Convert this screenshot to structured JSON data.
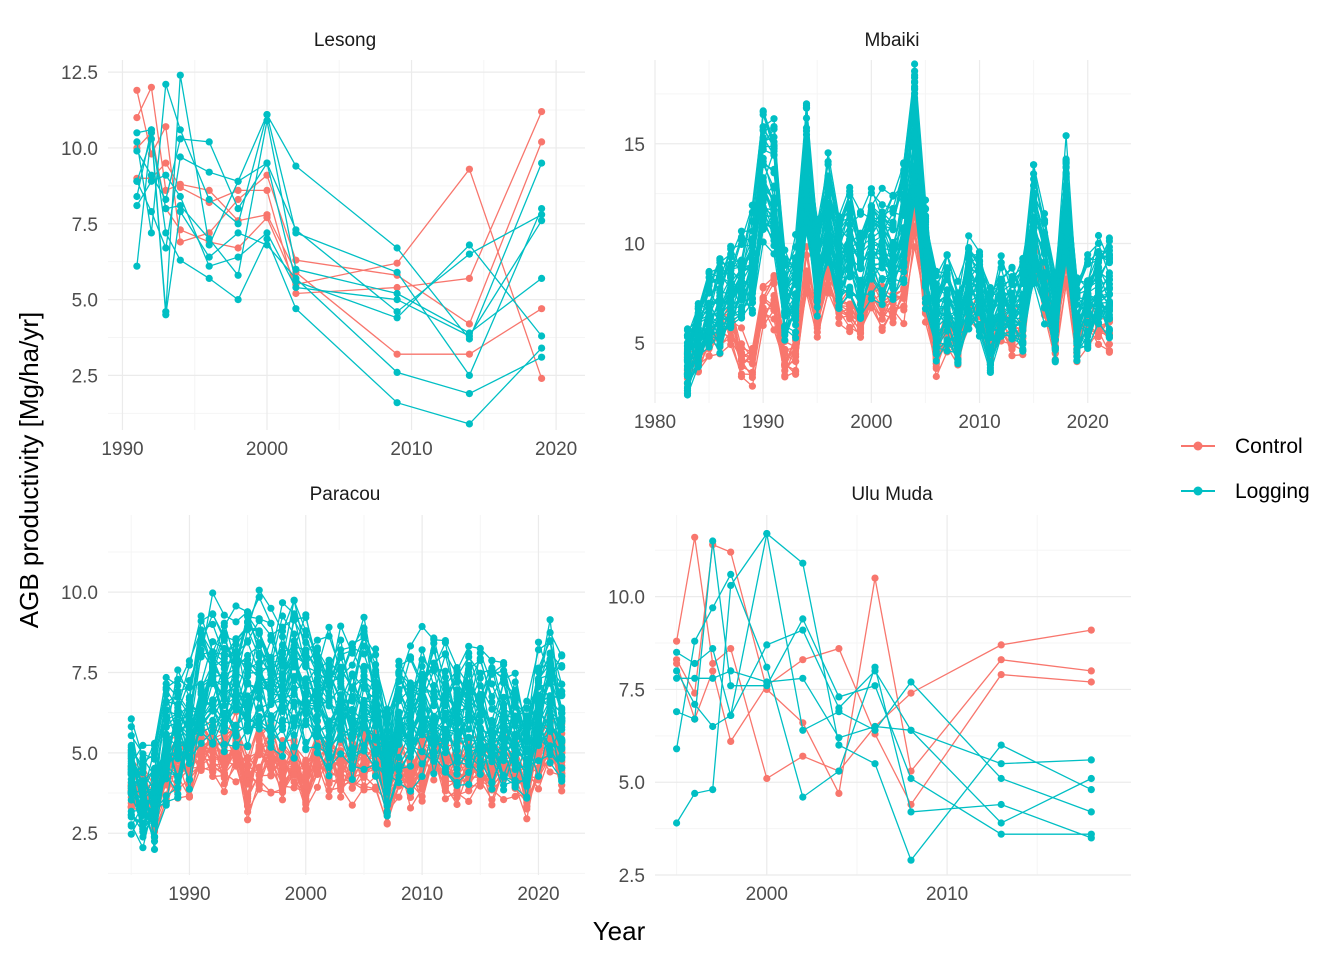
{
  "xlabel": "Year",
  "ylabel": "AGB productivity [Mg/ha/yr]",
  "colors": {
    "Control": "#F8766D",
    "Logging": "#00BFC4",
    "grid_major": "#ebebeb",
    "grid_minor": "#f5f5f5"
  },
  "legend": {
    "placement": "right",
    "entries": [
      "Control",
      "Logging"
    ]
  },
  "chart_data": [
    {
      "type": "line",
      "title": "Lesong",
      "xlim": [
        1989,
        2022
      ],
      "ylim": [
        0.7,
        12.9
      ],
      "xticks": [
        1990,
        2000,
        2010,
        2020
      ],
      "yticks": [
        2.5,
        5.0,
        7.5,
        10.0,
        12.5
      ],
      "ytick_labels": [
        "2.5",
        "5.0",
        "7.5",
        "10.0",
        "12.5"
      ],
      "x": [
        1991,
        1992,
        1993,
        1994,
        1996,
        1998,
        2000,
        2002,
        2009,
        2014,
        2019
      ],
      "series": [
        {
          "group": "Control",
          "values": [
            11.9,
            9.8,
            10.7,
            6.9,
            7.2,
            8.3,
            9.1,
            6.3,
            5.8,
            4.2,
            10.2
          ]
        },
        {
          "group": "Control",
          "values": [
            11.0,
            12.0,
            8.6,
            8.8,
            8.6,
            7.6,
            7.8,
            5.9,
            3.2,
            3.2,
            4.7
          ]
        },
        {
          "group": "Control",
          "values": [
            10.0,
            10.5,
            8.0,
            7.3,
            6.9,
            6.7,
            7.7,
            5.5,
            6.2,
            9.3,
            2.4
          ]
        },
        {
          "group": "Control",
          "values": [
            9.0,
            9.0,
            9.5,
            8.7,
            8.2,
            8.6,
            8.6,
            5.2,
            5.4,
            5.7,
            11.2
          ]
        },
        {
          "group": "Logging",
          "values": [
            10.5,
            10.6,
            4.6,
            12.4,
            6.8,
            8.9,
            11.1,
            9.4,
            6.7,
            3.7,
            9.5
          ]
        },
        {
          "group": "Logging",
          "values": [
            10.2,
            7.2,
            12.1,
            10.6,
            8.3,
            7.5,
            11.1,
            7.2,
            5.9,
            2.5,
            8.0
          ]
        },
        {
          "group": "Logging",
          "values": [
            9.9,
            9.1,
            8.3,
            10.3,
            10.2,
            8.0,
            9.5,
            7.3,
            4.6,
            6.5,
            7.8
          ]
        },
        {
          "group": "Logging",
          "values": [
            8.9,
            7.9,
            6.7,
            9.7,
            9.2,
            8.9,
            9.5,
            5.6,
            4.4,
            6.8,
            3.8
          ]
        },
        {
          "group": "Logging",
          "values": [
            8.4,
            10.6,
            7.2,
            6.3,
            5.7,
            5.0,
            7.0,
            4.7,
            1.6,
            0.9,
            3.4
          ]
        },
        {
          "group": "Logging",
          "values": [
            8.1,
            8.9,
            9.1,
            8.4,
            6.1,
            6.4,
            7.2,
            5.4,
            5.0,
            3.8,
            7.6
          ]
        },
        {
          "group": "Logging",
          "values": [
            6.1,
            10.5,
            4.5,
            7.9,
            6.4,
            7.2,
            6.8,
            5.7,
            2.6,
            1.9,
            3.1
          ]
        },
        {
          "group": "Logging",
          "values": [
            8.9,
            10.3,
            8.0,
            8.1,
            7.0,
            5.8,
            10.9,
            6.0,
            5.2,
            3.9,
            5.7
          ]
        }
      ]
    },
    {
      "type": "line",
      "title": "Mbaiki",
      "xlim": [
        1980,
        2024
      ],
      "ylim": [
        2.0,
        19.2
      ],
      "xticks": [
        1980,
        1990,
        2000,
        2010,
        2020
      ],
      "yticks": [
        5,
        10,
        15
      ],
      "ytick_labels": [
        "5",
        "10",
        "15"
      ],
      "pattern": {
        "x": [
          1983,
          1984,
          1985,
          1986,
          1987,
          1988,
          1989,
          1990,
          1991,
          1992,
          1993,
          1994,
          1995,
          1996,
          1997,
          1998,
          1999,
          2000,
          2001,
          2002,
          2003,
          2004,
          2005,
          2006,
          2007,
          2008,
          2009,
          2010,
          2011,
          2012,
          2013,
          2014,
          2015,
          2016,
          2017,
          2018,
          2019,
          2020,
          2021,
          2022
        ],
        "control_mean": [
          3.8,
          4.5,
          5.2,
          5.5,
          6.0,
          4.6,
          4.0,
          7.0,
          7.2,
          4.2,
          4.5,
          8.5,
          6.2,
          8.6,
          6.7,
          6.6,
          6.0,
          7.8,
          7.1,
          7.0,
          7.4,
          11.8,
          7.0,
          4.5,
          5.8,
          4.6,
          6.3,
          6.8,
          4.5,
          6.2,
          5.6,
          5.8,
          9.8,
          7.7,
          5.1,
          9.0,
          5.1,
          6.2,
          5.7,
          5.8
        ],
        "logging_mean": [
          4.2,
          5.2,
          6.6,
          6.8,
          7.6,
          8.0,
          9.0,
          13.2,
          12.7,
          7.3,
          7.8,
          13.4,
          8.8,
          11.4,
          9.0,
          10.0,
          8.8,
          10.0,
          10.0,
          9.5,
          11.0,
          15.4,
          9.5,
          6.3,
          6.9,
          5.9,
          7.9,
          7.8,
          5.6,
          7.1,
          6.7,
          6.8,
          10.8,
          8.7,
          6.2,
          12.0,
          6.2,
          7.0,
          7.7,
          7.6
        ]
      },
      "series_count": {
        "Control": 14,
        "Logging": 40
      }
    },
    {
      "type": "line",
      "title": "Paracou",
      "xlim": [
        1983,
        2024
      ],
      "ylim": [
        1.2,
        12.4
      ],
      "xticks": [
        1990,
        2000,
        2010,
        2020
      ],
      "yticks": [
        2.5,
        5.0,
        7.5,
        10.0
      ],
      "ytick_labels": [
        "2.5",
        "5.0",
        "7.5",
        "10.0"
      ],
      "pattern": {
        "x": [
          1985,
          1986,
          1987,
          1988,
          1989,
          1990,
          1991,
          1992,
          1993,
          1994,
          1995,
          1996,
          1997,
          1998,
          1999,
          2000,
          2001,
          2002,
          2003,
          2004,
          2005,
          2006,
          2007,
          2008,
          2009,
          2010,
          2011,
          2012,
          2013,
          2014,
          2015,
          2016,
          2017,
          2018,
          2019,
          2020,
          2021,
          2022
        ],
        "control_mean": [
          4.0,
          3.6,
          3.2,
          4.4,
          4.6,
          4.5,
          5.0,
          5.0,
          4.6,
          5.0,
          3.8,
          4.8,
          4.8,
          4.4,
          4.6,
          4.0,
          4.8,
          4.6,
          4.5,
          4.4,
          4.7,
          4.9,
          3.5,
          4.6,
          4.1,
          4.5,
          4.9,
          4.6,
          4.4,
          4.5,
          4.7,
          4.4,
          4.6,
          4.3,
          3.9,
          4.7,
          5.2,
          4.8
        ],
        "logging_mean": [
          4.2,
          3.6,
          3.6,
          5.4,
          5.6,
          6.0,
          7.0,
          7.5,
          7.0,
          7.3,
          7.4,
          7.6,
          7.3,
          7.2,
          7.3,
          7.0,
          7.1,
          6.7,
          6.8,
          6.3,
          6.9,
          6.3,
          4.6,
          6.2,
          6.1,
          6.6,
          6.4,
          6.2,
          6.1,
          6.4,
          6.2,
          5.8,
          5.9,
          5.8,
          5.4,
          6.3,
          6.8,
          5.8
        ]
      },
      "series_count": {
        "Control": 25,
        "Logging": 40
      }
    },
    {
      "type": "line",
      "title": "Ulu Muda",
      "xlim": [
        1993.8,
        2020.2
      ],
      "ylim": [
        2.5,
        12.2
      ],
      "xticks": [
        2000,
        2010
      ],
      "yticks": [
        2.5,
        5.0,
        7.5,
        10.0
      ],
      "ytick_labels": [
        "2.5",
        "5.0",
        "7.5",
        "10.0"
      ],
      "x": [
        1995,
        1996,
        1997,
        1998,
        2000,
        2002,
        2004,
        2006,
        2008,
        2013,
        2018
      ],
      "series": [
        {
          "group": "Control",
          "values": [
            8.8,
            11.6,
            8.2,
            8.6,
            5.1,
            5.7,
            5.3,
            6.5,
            7.4,
            8.7,
            9.1
          ]
        },
        {
          "group": "Control",
          "values": [
            8.3,
            7.4,
            11.4,
            11.2,
            7.5,
            6.6,
            4.7,
            10.5,
            5.3,
            8.3,
            8.0
          ]
        },
        {
          "group": "Control",
          "values": [
            8.2,
            6.7,
            8.0,
            6.1,
            7.6,
            8.3,
            8.6,
            6.3,
            4.4,
            7.9,
            7.7
          ]
        },
        {
          "group": "Logging",
          "values": [
            3.9,
            4.7,
            4.8,
            10.3,
            11.7,
            10.9,
            6.0,
            5.5,
            2.9,
            6.0,
            4.8
          ]
        },
        {
          "group": "Logging",
          "values": [
            5.9,
            8.8,
            9.7,
            10.6,
            8.1,
            4.6,
            5.3,
            8.1,
            4.2,
            4.4,
            3.5
          ]
        },
        {
          "group": "Logging",
          "values": [
            6.9,
            6.7,
            11.5,
            7.6,
            7.6,
            9.4,
            7.3,
            7.6,
            5.1,
            3.6,
            3.6
          ]
        },
        {
          "group": "Logging",
          "values": [
            7.8,
            7.8,
            7.8,
            8.0,
            7.7,
            7.8,
            6.2,
            6.5,
            6.4,
            3.9,
            5.1
          ]
        },
        {
          "group": "Logging",
          "values": [
            8.5,
            8.2,
            8.6,
            6.8,
            8.7,
            9.1,
            7.0,
            8.0,
            6.4,
            5.5,
            5.6
          ]
        },
        {
          "group": "Logging",
          "values": [
            8.0,
            7.1,
            6.5,
            6.8,
            11.7,
            6.4,
            6.9,
            6.4,
            7.7,
            5.1,
            4.2
          ]
        }
      ]
    }
  ]
}
